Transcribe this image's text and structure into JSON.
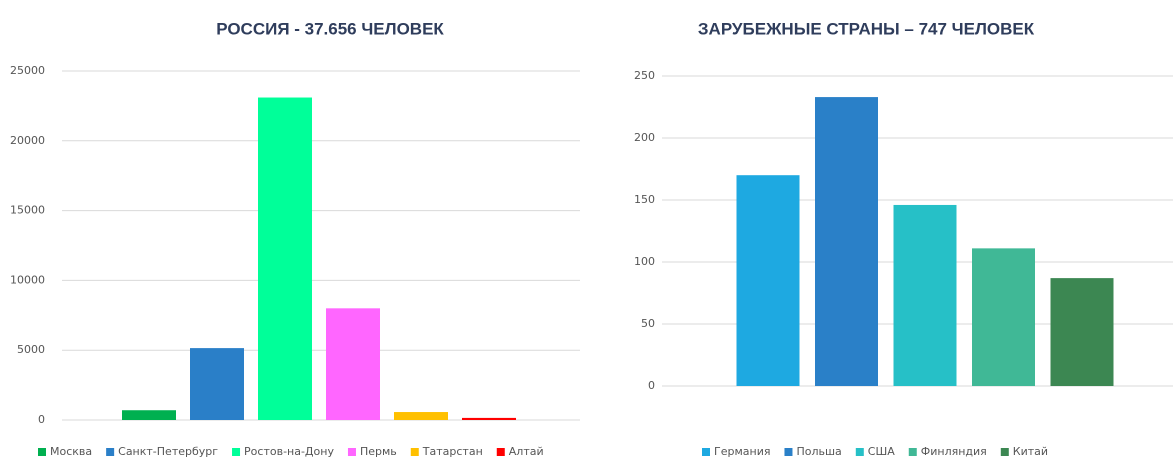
{
  "chart_data": [
    {
      "type": "bar",
      "title": "РОССИЯ  -  37.656 ЧЕЛОВЕК",
      "categories": [
        "Москва",
        "Санкт-Петербург",
        "Ростов-на-Дону",
        "Пермь",
        "Татарстан",
        "Алтай"
      ],
      "values": [
        700,
        5150,
        23100,
        8000,
        570,
        150
      ],
      "colors": [
        "#00b050",
        "#2a7fc8",
        "#00ff99",
        "#ff66ff",
        "#ffc000",
        "#ff0000"
      ],
      "ylim": [
        0,
        25000
      ],
      "yticks": [
        0,
        5000,
        10000,
        15000,
        20000,
        25000
      ],
      "grid": true,
      "legend": "bottom"
    },
    {
      "type": "bar",
      "title": "ЗАРУБЕЖНЫЕ  СТРАНЫ  – 747 ЧЕЛОВЕК",
      "categories": [
        "Германия",
        "Польша",
        "США",
        "Финляндия",
        "Китай"
      ],
      "values": [
        170,
        233,
        146,
        111,
        87
      ],
      "colors": [
        "#1ea9e1",
        "#2a80c8",
        "#26c0c7",
        "#40b896",
        "#3c8752"
      ],
      "ylim": [
        0,
        250
      ],
      "yticks": [
        0,
        50,
        100,
        150,
        200,
        250
      ],
      "grid": true,
      "legend": "bottom"
    }
  ]
}
